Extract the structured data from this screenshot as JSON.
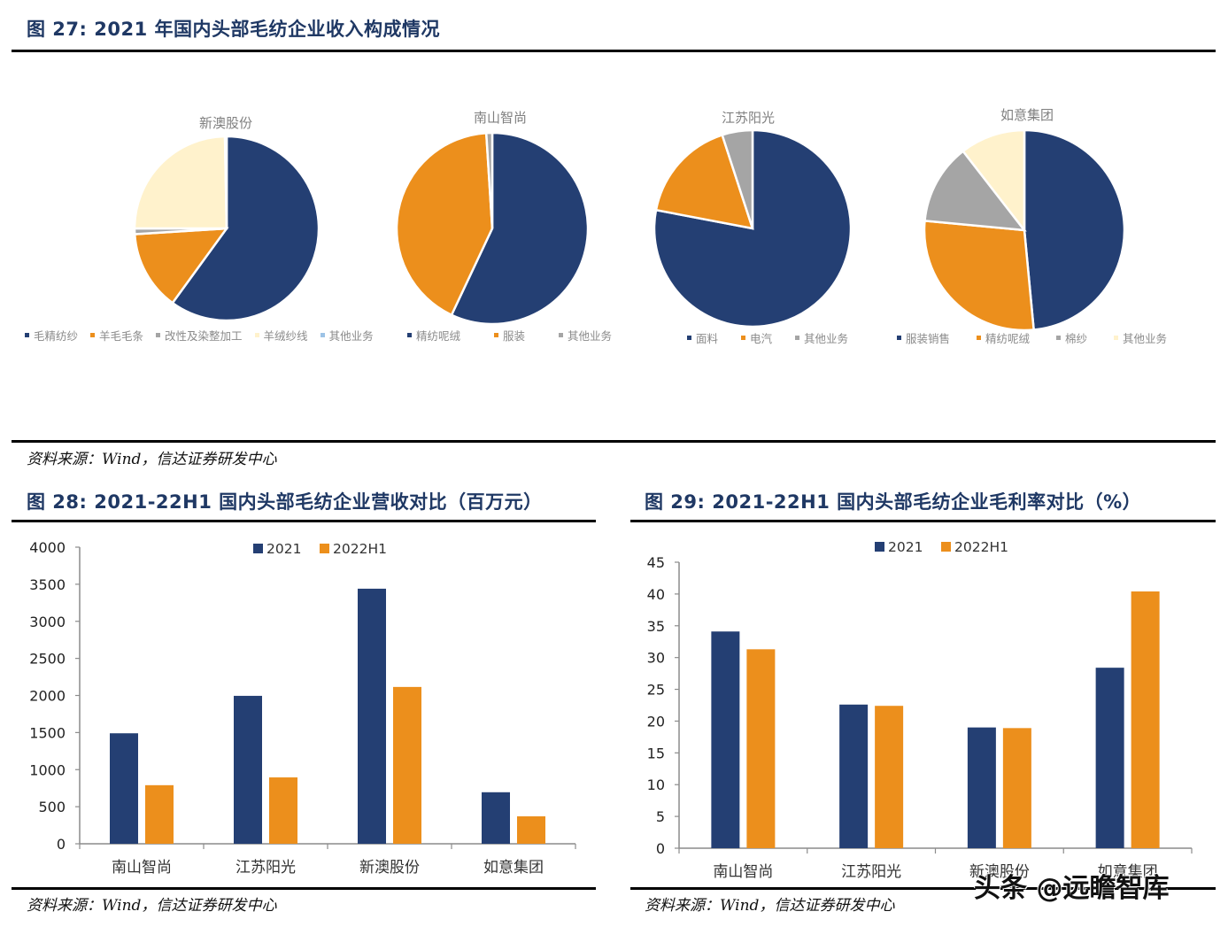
{
  "colors": {
    "navy": "#243f73",
    "orange": "#ec8f1c",
    "gray": "#a5a5a5",
    "cream": "#fff2cc",
    "lightblue": "#9dc3e6",
    "title": "#1f3864"
  },
  "fig27": {
    "title": "图 27:  2021 年国内头部毛纺企业收入构成情况",
    "source": "资料来源：Wind，信达证券研发中心"
  },
  "fig28": {
    "title": "图 28:  2021-22H1 国内头部毛纺企业营收对比（百万元）",
    "source": "资料来源：Wind，信达证券研发中心"
  },
  "fig29": {
    "title": "图 29:   2021-22H1 国内头部毛纺企业毛利率对比（%）",
    "source": "资料来源：Wind，信达证券研发中心"
  },
  "watermark": "头条 @远瞻智库",
  "chart_data": [
    {
      "type": "pie",
      "title": "新澳股份",
      "labels": [
        "毛精纺纱",
        "羊毛毛条",
        "改性及染整加工",
        "羊绒纱线",
        "其他业务"
      ],
      "values": [
        60,
        14,
        1,
        24.7,
        0.3
      ],
      "colors": [
        "#243f73",
        "#ec8f1c",
        "#a5a5a5",
        "#fff2cc",
        "#9dc3e6"
      ],
      "legend_position": "bottom"
    },
    {
      "type": "pie",
      "title": "南山智尚",
      "labels": [
        "精纺呢绒",
        "服装",
        "其他业务"
      ],
      "values": [
        57,
        42,
        1
      ],
      "colors": [
        "#243f73",
        "#ec8f1c",
        "#a5a5a5"
      ],
      "legend_position": "bottom"
    },
    {
      "type": "pie",
      "title": "江苏阳光",
      "labels": [
        "面料",
        "电汽",
        "其他业务"
      ],
      "values": [
        78,
        17,
        5
      ],
      "colors": [
        "#243f73",
        "#ec8f1c",
        "#a5a5a5"
      ],
      "legend_position": "bottom"
    },
    {
      "type": "pie",
      "title": "如意集团",
      "labels": [
        "服装销售",
        "精纺呢绒",
        "棉纱",
        "其他业务"
      ],
      "values": [
        48.5,
        28,
        13,
        10.5
      ],
      "colors": [
        "#243f73",
        "#ec8f1c",
        "#a5a5a5",
        "#fff2cc"
      ],
      "legend_position": "bottom"
    },
    {
      "type": "bar",
      "title": "2021-22H1 国内头部毛纺企业营收对比（百万元）",
      "categories": [
        "南山智尚",
        "江苏阳光",
        "新澳股份",
        "如意集团"
      ],
      "series": [
        {
          "name": "2021",
          "values": [
            1490,
            1995,
            3440,
            695
          ],
          "color": "#243f73"
        },
        {
          "name": "2022H1",
          "values": [
            790,
            895,
            2115,
            370
          ],
          "color": "#ec8f1c"
        }
      ],
      "yticks": [
        "0",
        "500",
        "1000",
        "1500",
        "2000",
        "2500",
        "3000",
        "3500",
        "4000"
      ],
      "ylim": [
        0,
        4000
      ],
      "xlabel": "",
      "ylabel": "",
      "grid": false,
      "legend_position": "top"
    },
    {
      "type": "bar",
      "title": "2021-22H1 国内头部毛纺企业毛利率对比（%）",
      "categories": [
        "南山智尚",
        "江苏阳光",
        "新澳股份",
        "如意集团"
      ],
      "series": [
        {
          "name": "2021",
          "values": [
            34.1,
            22.6,
            19.0,
            28.4
          ],
          "color": "#243f73"
        },
        {
          "name": "2022H1",
          "values": [
            31.3,
            22.4,
            18.9,
            40.4
          ],
          "color": "#ec8f1c"
        }
      ],
      "yticks": [
        "0",
        "5",
        "10",
        "15",
        "20",
        "25",
        "30",
        "35",
        "40",
        "45"
      ],
      "ylim": [
        0,
        45
      ],
      "xlabel": "",
      "ylabel": "",
      "grid": false,
      "legend_position": "top"
    }
  ]
}
